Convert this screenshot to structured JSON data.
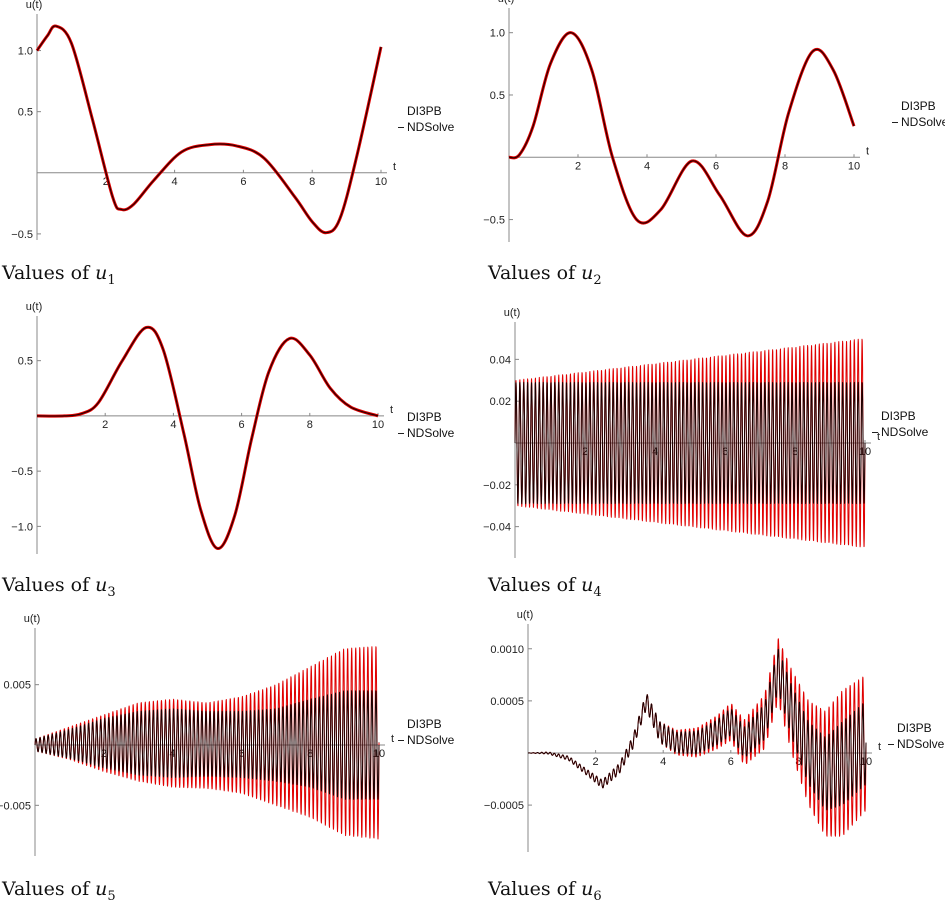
{
  "chart_data": [
    {
      "type": "line",
      "ylabel": "u(t)",
      "xlabel": "t",
      "xlim": [
        0,
        10
      ],
      "ylim": [
        -0.55,
        1.25
      ],
      "xticks": [
        2,
        4,
        6,
        8,
        10
      ],
      "yticks": [
        -0.5,
        0.5,
        1.0
      ],
      "ytick_labels": [
        "−0.5",
        "0.5",
        "1.0"
      ],
      "legend": [
        "DI3PB",
        "NDSolve"
      ],
      "series": [
        {
          "name": "DI3PB",
          "color": "#e00000",
          "style": "smooth",
          "x": [
            0,
            0.3,
            0.55,
            1.0,
            1.6,
            2.2,
            2.45,
            2.8,
            3.4,
            4.2,
            5.0,
            5.8,
            6.6,
            7.5,
            8.0,
            8.4,
            8.8,
            9.3,
            10.0
          ],
          "y": [
            1.0,
            1.12,
            1.2,
            1.06,
            0.45,
            -0.2,
            -0.3,
            -0.26,
            -0.06,
            0.17,
            0.23,
            0.22,
            0.12,
            -0.2,
            -0.4,
            -0.49,
            -0.38,
            0.14,
            1.03
          ]
        },
        {
          "name": "NDSolve",
          "color": "#2a0000",
          "style": "smooth",
          "x": [
            0,
            0.3,
            0.55,
            1.0,
            1.6,
            2.2,
            2.45,
            2.8,
            3.4,
            4.2,
            5.0,
            5.8,
            6.6,
            7.5,
            8.0,
            8.4,
            8.8,
            9.3,
            10.0
          ],
          "y": [
            1.0,
            1.12,
            1.2,
            1.06,
            0.45,
            -0.2,
            -0.3,
            -0.26,
            -0.06,
            0.17,
            0.23,
            0.22,
            0.12,
            -0.2,
            -0.4,
            -0.49,
            -0.38,
            0.14,
            1.03
          ]
        }
      ]
    },
    {
      "type": "line",
      "ylabel": "u(t)",
      "xlabel": "t",
      "xlim": [
        0,
        10
      ],
      "ylim": [
        -0.68,
        1.15
      ],
      "xticks": [
        2,
        4,
        6,
        8,
        10
      ],
      "yticks": [
        -0.5,
        0.5,
        1.0
      ],
      "ytick_labels": [
        "−0.5",
        "0.5",
        "1.0"
      ],
      "legend": [
        "DI3PB",
        "NDSolve"
      ],
      "series": [
        {
          "name": "DI3PB",
          "color": "#e00000",
          "style": "smooth",
          "x": [
            0,
            0.3,
            0.7,
            1.2,
            1.8,
            2.4,
            3.0,
            3.7,
            4.4,
            5.3,
            6.1,
            6.9,
            7.5,
            8.1,
            8.8,
            9.4,
            10.0
          ],
          "y": [
            0.0,
            0.02,
            0.25,
            0.75,
            1.0,
            0.7,
            0.0,
            -0.5,
            -0.42,
            -0.03,
            -0.3,
            -0.63,
            -0.35,
            0.35,
            0.85,
            0.7,
            0.25
          ]
        },
        {
          "name": "NDSolve",
          "color": "#2a0000",
          "style": "smooth",
          "x": [
            0,
            0.3,
            0.7,
            1.2,
            1.8,
            2.4,
            3.0,
            3.7,
            4.4,
            5.3,
            6.1,
            6.9,
            7.5,
            8.1,
            8.8,
            9.4,
            10.0
          ],
          "y": [
            0.0,
            0.02,
            0.25,
            0.75,
            1.0,
            0.7,
            0.0,
            -0.5,
            -0.42,
            -0.03,
            -0.3,
            -0.63,
            -0.35,
            0.35,
            0.85,
            0.7,
            0.25
          ]
        }
      ]
    },
    {
      "type": "line",
      "ylabel": "u(t)",
      "xlabel": "t",
      "xlim": [
        0,
        10
      ],
      "ylim": [
        -1.25,
        0.85
      ],
      "xticks": [
        2,
        4,
        6,
        8,
        10
      ],
      "yticks": [
        -1.0,
        -0.5,
        0.5
      ],
      "ytick_labels": [
        "−1.0",
        "−0.5",
        "0.5"
      ],
      "legend": [
        "DI3PB",
        "NDSolve"
      ],
      "series": [
        {
          "name": "DI3PB",
          "color": "#e00000",
          "style": "smooth",
          "x": [
            0,
            0.8,
            1.3,
            1.8,
            2.5,
            3.2,
            3.7,
            4.3,
            4.8,
            5.3,
            5.8,
            6.3,
            6.8,
            7.4,
            8.0,
            8.6,
            9.2,
            10.0
          ],
          "y": [
            0.0,
            0.0,
            0.02,
            0.12,
            0.5,
            0.8,
            0.6,
            -0.15,
            -0.85,
            -1.2,
            -0.9,
            -0.2,
            0.4,
            0.7,
            0.55,
            0.25,
            0.08,
            0.0
          ]
        },
        {
          "name": "NDSolve",
          "color": "#2a0000",
          "style": "smooth",
          "x": [
            0,
            0.8,
            1.3,
            1.8,
            2.5,
            3.2,
            3.7,
            4.3,
            4.8,
            5.3,
            5.8,
            6.3,
            6.8,
            7.4,
            8.0,
            8.6,
            9.2,
            10.0
          ],
          "y": [
            0.0,
            0.0,
            0.02,
            0.12,
            0.5,
            0.8,
            0.6,
            -0.15,
            -0.85,
            -1.2,
            -0.9,
            -0.2,
            0.4,
            0.7,
            0.55,
            0.25,
            0.08,
            0.0
          ]
        }
      ]
    },
    {
      "type": "line",
      "ylabel": "u(t)",
      "xlabel": "t",
      "xlim": [
        0,
        10
      ],
      "ylim": [
        -0.055,
        0.055
      ],
      "xticks": [
        2,
        4,
        6,
        8,
        10
      ],
      "yticks": [
        -0.04,
        -0.02,
        0.02,
        0.04
      ],
      "ytick_labels": [
        "−0.04",
        "−0.02",
        "0.02",
        "0.04"
      ],
      "legend": [
        "DI3PB",
        "NDSolve"
      ],
      "series": [
        {
          "name": "DI3PB",
          "color": "#e00000",
          "style": "oscillation",
          "cycles": 90,
          "x": [
            0,
            2,
            4,
            6,
            8,
            10
          ],
          "envelope_upper": [
            0.03,
            0.034,
            0.038,
            0.042,
            0.046,
            0.05
          ],
          "envelope_lower": [
            -0.03,
            -0.034,
            -0.038,
            -0.042,
            -0.046,
            -0.05
          ]
        },
        {
          "name": "NDSolve",
          "color": "#1a0000",
          "style": "oscillation",
          "cycles": 90,
          "x": [
            0,
            2,
            4,
            6,
            8,
            10
          ],
          "envelope_upper": [
            0.029,
            0.029,
            0.029,
            0.029,
            0.029,
            0.029
          ],
          "envelope_lower": [
            -0.029,
            -0.029,
            -0.029,
            -0.029,
            -0.029,
            -0.029
          ]
        }
      ]
    },
    {
      "type": "line",
      "ylabel": "u(t)",
      "xlabel": "t",
      "xlim": [
        0,
        10
      ],
      "ylim": [
        -0.0092,
        0.0092
      ],
      "xticks": [
        2,
        4,
        6,
        8,
        10
      ],
      "yticks": [
        -0.005,
        0.005
      ],
      "ytick_labels": [
        "−0.005",
        "0.005"
      ],
      "legend": [
        "DI3PB",
        "NDSolve"
      ],
      "series": [
        {
          "name": "DI3PB",
          "color": "#e00000",
          "style": "oscillation",
          "cycles": 85,
          "x": [
            0,
            1,
            2,
            3,
            4,
            5,
            6,
            7,
            8,
            9,
            10
          ],
          "envelope_upper": [
            0.0005,
            0.0015,
            0.0025,
            0.0035,
            0.0038,
            0.0035,
            0.004,
            0.005,
            0.0065,
            0.008,
            0.0082
          ],
          "envelope_lower": [
            -0.0005,
            -0.0012,
            -0.0022,
            -0.003,
            -0.0035,
            -0.0036,
            -0.004,
            -0.005,
            -0.006,
            -0.0075,
            -0.0078
          ]
        },
        {
          "name": "NDSolve",
          "color": "#1a0000",
          "style": "oscillation",
          "cycles": 85,
          "x": [
            0,
            1,
            2,
            3,
            4,
            5,
            6,
            7,
            8,
            9,
            10
          ],
          "envelope_upper": [
            0.0005,
            0.0013,
            0.0022,
            0.0028,
            0.003,
            0.0028,
            0.0028,
            0.003,
            0.0038,
            0.0045,
            0.0045
          ],
          "envelope_lower": [
            -0.0005,
            -0.0011,
            -0.0019,
            -0.0025,
            -0.0027,
            -0.0026,
            -0.0027,
            -0.003,
            -0.0035,
            -0.0045,
            -0.0045
          ]
        }
      ]
    },
    {
      "type": "line",
      "ylabel": "u(t)",
      "xlabel": "t",
      "xlim": [
        0,
        10
      ],
      "ylim": [
        -0.00095,
        0.00118
      ],
      "xticks": [
        2,
        4,
        6,
        8,
        10
      ],
      "yticks": [
        -0.0005,
        0.0005,
        0.001
      ],
      "ytick_labels": [
        "−0.0005",
        "0.0005",
        "0.0010"
      ],
      "legend": [
        "DI3PB",
        "NDSolve"
      ],
      "series": [
        {
          "name": "DI3PB",
          "color": "#e00000",
          "style": "oscillation",
          "cycles": 80,
          "x": [
            0,
            0.6,
            1.2,
            1.8,
            2.2,
            2.7,
            3.1,
            3.5,
            3.9,
            4.4,
            5.0,
            5.6,
            6.0,
            6.4,
            7.0,
            7.4,
            7.8,
            8.3,
            8.8,
            9.3,
            10.0
          ],
          "center": [
            0.0,
            0.0,
            -5e-05,
            -0.0002,
            -0.0003,
            -0.00015,
            0.0001,
            0.0005,
            0.0002,
            0.0001,
            0.0001,
            0.0002,
            0.0003,
            0.0001,
            0.0003,
            0.0008,
            0.0004,
            0.0,
            -0.0002,
            -0.0001,
            0.0001
          ],
          "amplitude": [
            0.0,
            1e-05,
            2e-05,
            3e-05,
            4e-05,
            5e-05,
            6e-05,
            8e-05,
            0.0001,
            0.00012,
            0.00014,
            0.00016,
            0.00018,
            0.00022,
            0.00026,
            0.0003,
            0.0004,
            0.0005,
            0.0006,
            0.0007,
            0.00065
          ]
        },
        {
          "name": "NDSolve",
          "color": "#1a0000",
          "style": "oscillation",
          "cycles": 80,
          "x": [
            0,
            0.6,
            1.2,
            1.8,
            2.2,
            2.7,
            3.1,
            3.5,
            3.9,
            4.4,
            5.0,
            5.6,
            6.0,
            6.4,
            7.0,
            7.4,
            7.8,
            8.3,
            8.8,
            9.3,
            10.0
          ],
          "center": [
            0.0,
            0.0,
            -5e-05,
            -0.0002,
            -0.0003,
            -0.00015,
            0.0001,
            0.0005,
            0.0002,
            0.0001,
            0.0001,
            0.0002,
            0.0003,
            0.0001,
            0.0003,
            0.0008,
            0.0004,
            0.0,
            -0.0002,
            -0.0001,
            0.0001
          ],
          "amplitude": [
            0.0,
            1e-05,
            2e-05,
            3e-05,
            4e-05,
            5e-05,
            6e-05,
            8e-05,
            0.0001,
            0.0001,
            0.00011,
            0.00012,
            0.00013,
            0.00015,
            0.00017,
            0.0002,
            0.00025,
            0.0003,
            0.00035,
            0.0004,
            0.0004
          ]
        }
      ]
    }
  ],
  "captions": [
    {
      "prefix": "Values of ",
      "var": "u",
      "sub": "1"
    },
    {
      "prefix": "Values of ",
      "var": "u",
      "sub": "2"
    },
    {
      "prefix": "Values of ",
      "var": "u",
      "sub": "3"
    },
    {
      "prefix": "Values of ",
      "var": "u",
      "sub": "4"
    },
    {
      "prefix": "Values of ",
      "var": "u",
      "sub": "5"
    },
    {
      "prefix": "Values of ",
      "var": "u",
      "sub": "6"
    }
  ]
}
